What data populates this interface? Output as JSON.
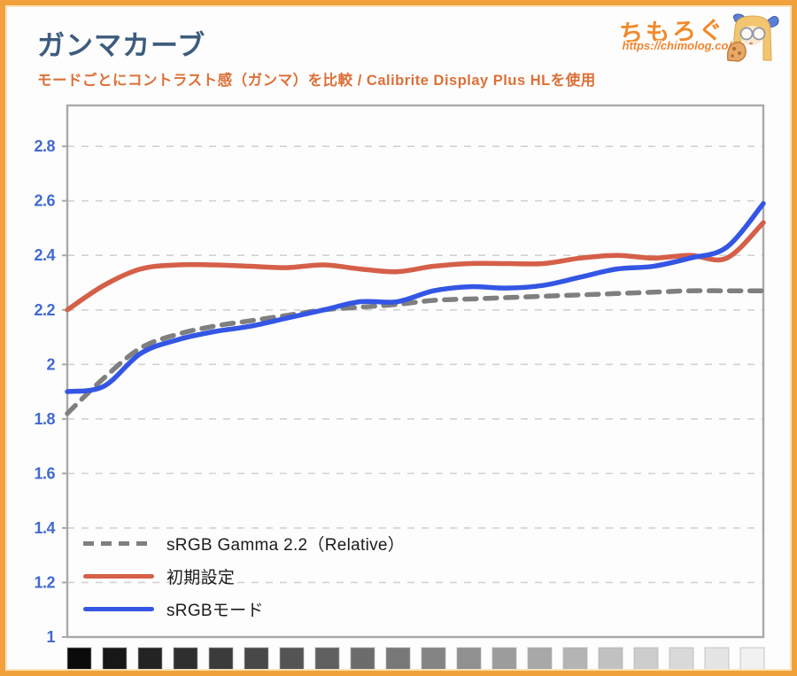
{
  "page": {
    "title": "ガンマカーブ",
    "subtitle": "モードごとにコントラスト感（ガンマ）を比較 / Calibrite Display Plus HLを使用",
    "logo": {
      "brand": "ちもろぐ",
      "url": "https://chimolog.co/"
    }
  },
  "colors": {
    "frame_border": "#F2A23C",
    "frame_inner": "#FCE3B8",
    "title": "#3E5C7D",
    "subtitle": "#DC7038",
    "brand": "#F08A2C",
    "axis_label": "#4169D0",
    "gridline": "#D2D2D2",
    "plot_border": "#A9A9A9",
    "legend_text": "#1C1C1C"
  },
  "chart_data": {
    "type": "line",
    "x": [
      1,
      2,
      3,
      4,
      5,
      6,
      7,
      8,
      9,
      10,
      11,
      12,
      13,
      14,
      15,
      16,
      17,
      18,
      19,
      20
    ],
    "x_axis": "grayscale-swatch-strip",
    "ylim": [
      1.0,
      2.95
    ],
    "yticks": [
      "1",
      "1.2",
      "1.4",
      "1.6",
      "1.8",
      "2",
      "2.2",
      "2.4",
      "2.6",
      "2.8"
    ],
    "grid": true,
    "legend_position": "inside-bottom-left",
    "series": [
      {
        "name": "sRGB Gamma 2.2（Relative）",
        "color": "#7F7F7F",
        "dash": true,
        "values": [
          1.82,
          1.95,
          2.06,
          2.11,
          2.14,
          2.16,
          2.18,
          2.2,
          2.21,
          2.22,
          2.235,
          2.24,
          2.245,
          2.25,
          2.255,
          2.26,
          2.265,
          2.27,
          2.27,
          2.27
        ]
      },
      {
        "name": "初期設定",
        "color": "#D55F48",
        "dash": false,
        "values": [
          2.2,
          2.29,
          2.35,
          2.365,
          2.365,
          2.36,
          2.355,
          2.365,
          2.35,
          2.34,
          2.36,
          2.37,
          2.37,
          2.37,
          2.39,
          2.4,
          2.39,
          2.4,
          2.39,
          2.52
        ]
      },
      {
        "name": "sRGBモード",
        "color": "#3456E4",
        "dash": false,
        "values": [
          1.9,
          1.92,
          2.04,
          2.09,
          2.12,
          2.14,
          2.17,
          2.2,
          2.23,
          2.23,
          2.27,
          2.285,
          2.28,
          2.29,
          2.32,
          2.35,
          2.36,
          2.39,
          2.43,
          2.59
        ]
      }
    ],
    "grayscale_strip": {
      "steps": 20,
      "start": "#0B0B0B",
      "end": "#F1F1F1"
    }
  }
}
